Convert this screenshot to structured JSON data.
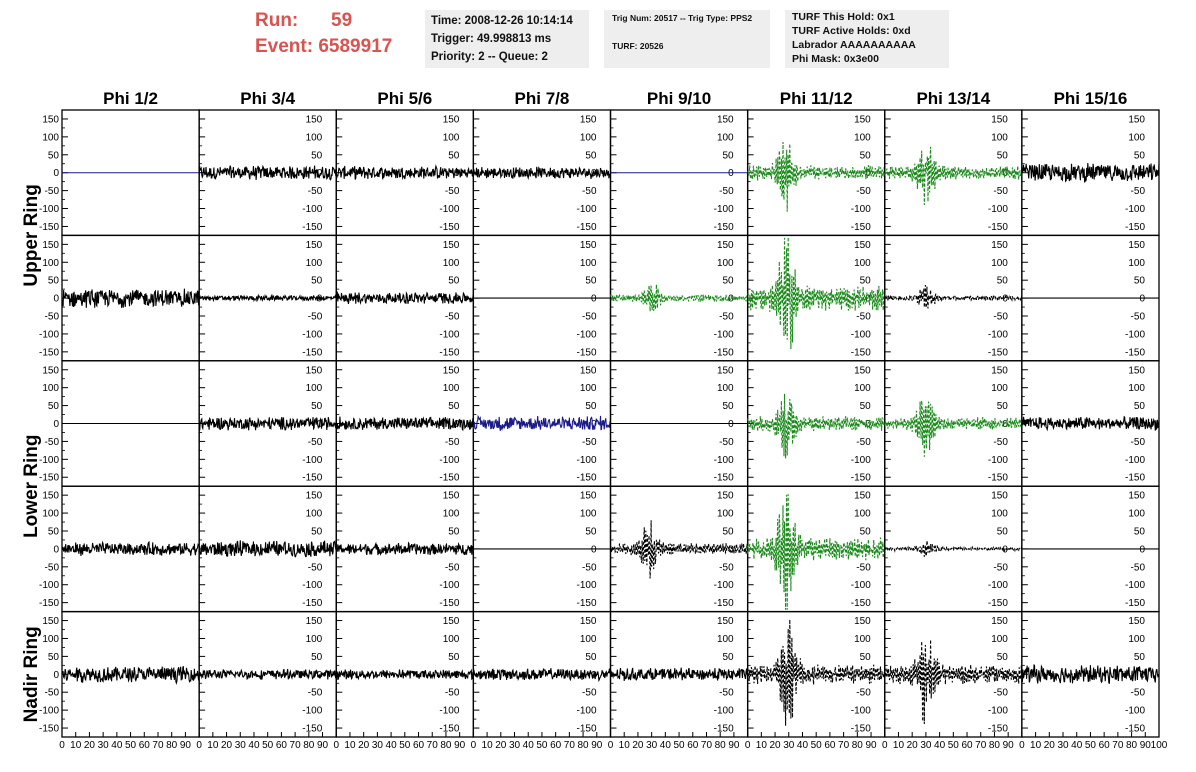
{
  "header": {
    "run_label": "Run:",
    "run_value": "59",
    "event_label": "Event:",
    "event_value": "6589917",
    "time_line": "Time: 2008-12-26 10:14:14",
    "trigger_line": "Trigger: 49.998813 ms",
    "priority_line": "Priority: 2 -- Queue: 2",
    "trig_line": "Trig Num: 20517 -- Trig Type: PPS2",
    "turf_line": "TURF: 20526",
    "turf_hold_line": "TURF This Hold: 0x1",
    "turf_active_line": "TURF Active Holds: 0xd",
    "labrador_line": "Labrador AAAAAAAAAA",
    "phi_mask_line": "Phi Mask: 0x3e00"
  },
  "chart_data": {
    "type": "line",
    "columns": [
      "Phi 1/2",
      "Phi 3/4",
      "Phi 5/6",
      "Phi 7/8",
      "Phi 9/10",
      "Phi 11/12",
      "Phi 13/14",
      "Phi 15/16"
    ],
    "ring_labels": [
      {
        "label": "Upper Ring",
        "rows": [
          0,
          1
        ]
      },
      {
        "label": "Lower Ring",
        "rows": [
          2,
          3
        ]
      },
      {
        "label": "Nadir Ring",
        "rows": [
          4
        ]
      }
    ],
    "xlim": [
      0,
      100
    ],
    "ylim": [
      -175,
      175
    ],
    "x_ticks": [
      0,
      10,
      20,
      30,
      40,
      50,
      60,
      70,
      80,
      90,
      100
    ],
    "y_ticks": [
      -150,
      -100,
      -50,
      0,
      50,
      100,
      150
    ],
    "colors": {
      "normal": "#000000",
      "triggered": "#1a8a1a",
      "masked": "#1a1a8a"
    },
    "panels": [
      [
        {
          "style": "flat",
          "color": "masked",
          "amp": 0
        },
        {
          "style": "noise",
          "color": "normal",
          "amp": 22
        },
        {
          "style": "noise",
          "color": "normal",
          "amp": 20
        },
        {
          "style": "noise",
          "color": "normal",
          "amp": 18
        },
        {
          "style": "flat",
          "color": "masked",
          "amp": 0
        },
        {
          "style": "pulse",
          "color": "triggered",
          "amp": 95,
          "peak": 28
        },
        {
          "style": "pulse",
          "color": "triggered",
          "amp": 85,
          "peak": 30
        },
        {
          "style": "noise",
          "color": "normal",
          "amp": 28
        }
      ],
      [
        {
          "style": "noise",
          "color": "normal",
          "amp": 28
        },
        {
          "style": "noise",
          "color": "normal",
          "amp": 8
        },
        {
          "style": "noise",
          "color": "normal",
          "amp": 18
        },
        {
          "style": "flat",
          "color": "normal",
          "amp": 0
        },
        {
          "style": "pulse",
          "color": "triggered",
          "amp": 45,
          "peak": 30
        },
        {
          "style": "pulse",
          "color": "triggered",
          "amp": 160,
          "peak": 28
        },
        {
          "style": "pulse",
          "color": "normal",
          "amp": 30,
          "peak": 30
        },
        {
          "style": "flat",
          "color": "normal",
          "amp": 0
        }
      ],
      [
        {
          "style": "flat",
          "color": "normal",
          "amp": 0
        },
        {
          "style": "noise",
          "color": "normal",
          "amp": 20
        },
        {
          "style": "noise",
          "color": "normal",
          "amp": 20
        },
        {
          "style": "noise",
          "color": "masked",
          "amp": 22
        },
        {
          "style": "flat",
          "color": "normal",
          "amp": 0
        },
        {
          "style": "pulse",
          "color": "triggered",
          "amp": 95,
          "peak": 28
        },
        {
          "style": "pulse",
          "color": "triggered",
          "amp": 80,
          "peak": 30
        },
        {
          "style": "noise",
          "color": "normal",
          "amp": 20
        }
      ],
      [
        {
          "style": "noise",
          "color": "normal",
          "amp": 20
        },
        {
          "style": "noise",
          "color": "normal",
          "amp": 25
        },
        {
          "style": "noise",
          "color": "normal",
          "amp": 18
        },
        {
          "style": "flat",
          "color": "normal",
          "amp": 0
        },
        {
          "style": "pulse",
          "color": "normal",
          "amp": 75,
          "peak": 28
        },
        {
          "style": "pulse",
          "color": "triggered",
          "amp": 150,
          "peak": 28
        },
        {
          "style": "pulse",
          "color": "normal",
          "amp": 22,
          "peak": 30
        },
        {
          "style": "flat",
          "color": "normal",
          "amp": 0
        }
      ],
      [
        {
          "style": "noise",
          "color": "normal",
          "amp": 25
        },
        {
          "style": "noise",
          "color": "normal",
          "amp": 15
        },
        {
          "style": "noise",
          "color": "normal",
          "amp": 15
        },
        {
          "style": "noise",
          "color": "normal",
          "amp": 18
        },
        {
          "style": "noise",
          "color": "normal",
          "amp": 20
        },
        {
          "style": "pulse",
          "color": "normal",
          "amp": 130,
          "peak": 30
        },
        {
          "style": "pulse",
          "color": "normal",
          "amp": 120,
          "peak": 30
        },
        {
          "style": "noise",
          "color": "normal",
          "amp": 28
        }
      ]
    ]
  }
}
